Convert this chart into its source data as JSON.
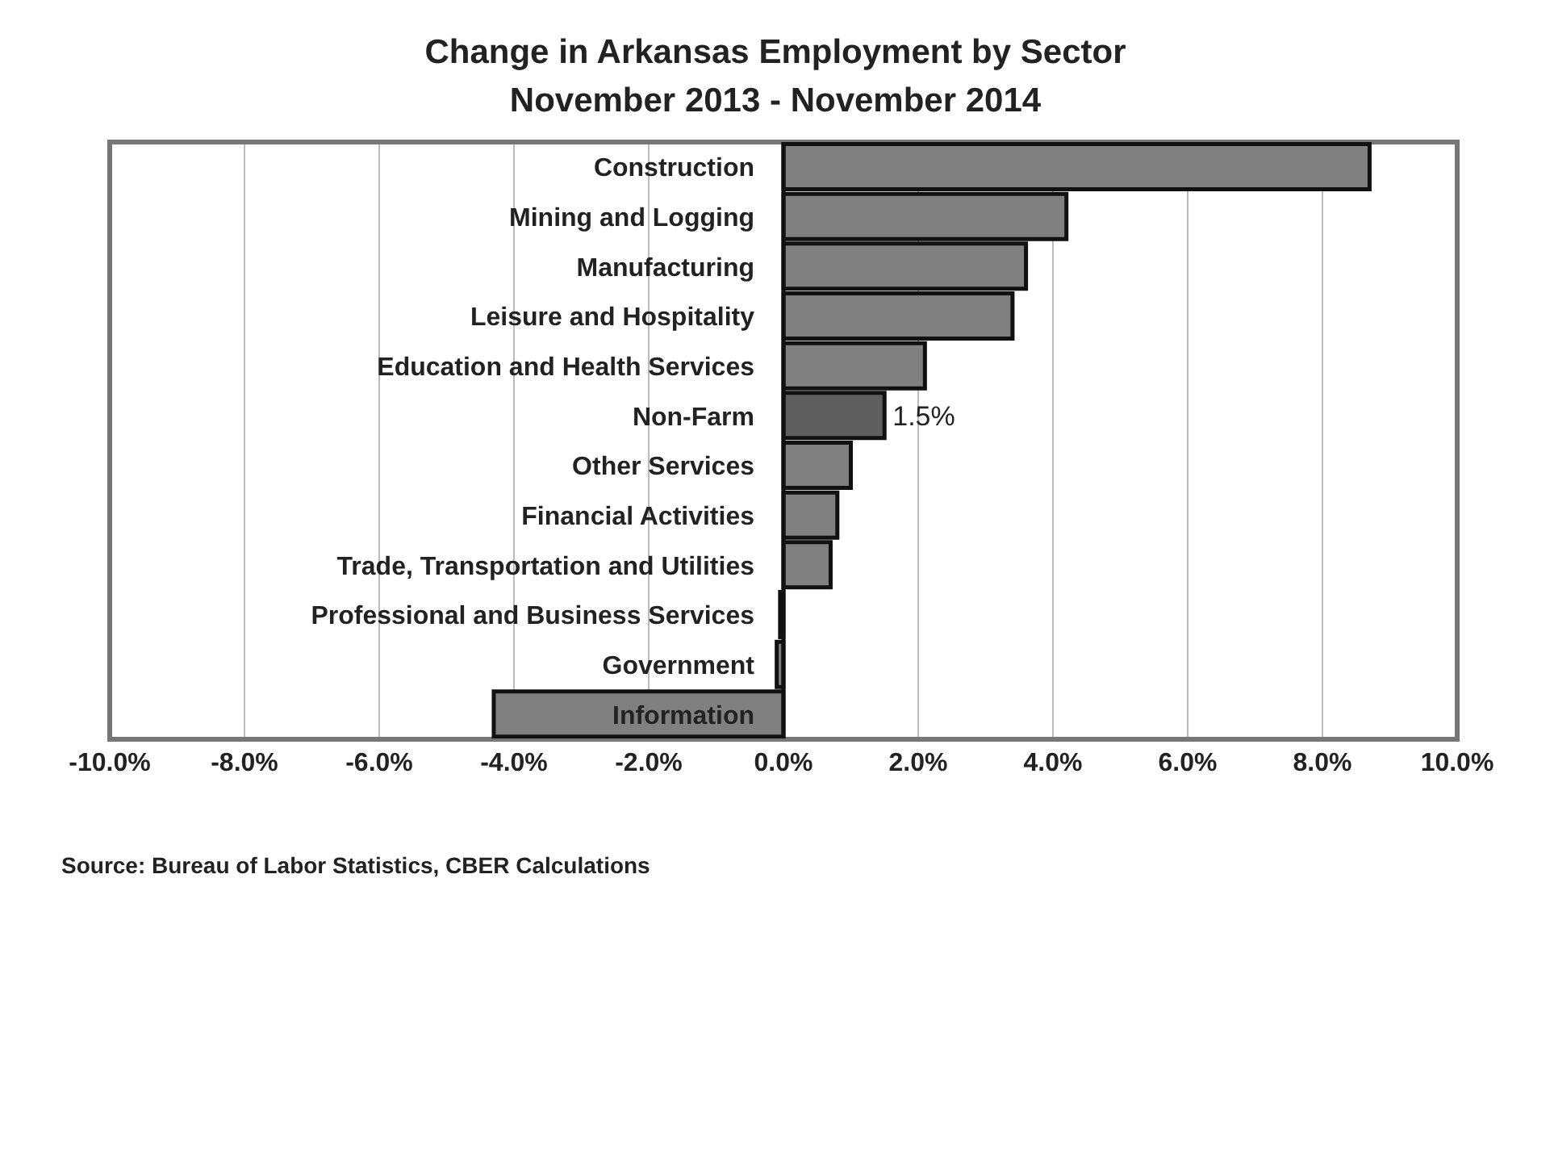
{
  "chart_data": {
    "type": "bar",
    "orientation": "horizontal",
    "title": "Change in Arkansas Employment by Sector",
    "subtitle": "November 2013 - November 2014",
    "categories": [
      "Construction",
      "Mining and Logging",
      "Manufacturing",
      "Leisure and Hospitality",
      "Education and Health Services",
      "Non-Farm",
      "Other Services",
      "Financial Activities",
      "Trade, Transportation and Utilities",
      "Professional and Business Services",
      "Government",
      "Information"
    ],
    "values": [
      8.7,
      4.2,
      3.6,
      3.4,
      2.1,
      1.5,
      1.0,
      0.8,
      0.7,
      -0.05,
      -0.1,
      -4.3
    ],
    "colors": [
      "#808080",
      "#808080",
      "#808080",
      "#808080",
      "#808080",
      "#5f5f5f",
      "#808080",
      "#808080",
      "#808080",
      "#808080",
      "#808080",
      "#808080"
    ],
    "value_labels": [
      null,
      null,
      null,
      null,
      null,
      "1.5%",
      null,
      null,
      null,
      null,
      null,
      null
    ],
    "xlim": [
      -10,
      10
    ],
    "xticks": [
      {
        "value": -10,
        "label": "-10.0%"
      },
      {
        "value": -8,
        "label": "-8.0%"
      },
      {
        "value": -6,
        "label": "-6.0%"
      },
      {
        "value": -4,
        "label": "-4.0%"
      },
      {
        "value": -2,
        "label": "-2.0%"
      },
      {
        "value": 0,
        "label": "0.0%"
      },
      {
        "value": 2,
        "label": "2.0%"
      },
      {
        "value": 4,
        "label": "4.0%"
      },
      {
        "value": 6,
        "label": "6.0%"
      },
      {
        "value": 8,
        "label": "8.0%"
      },
      {
        "value": 10,
        "label": "10.0%"
      }
    ],
    "grid": "x",
    "annotations": [
      "Source: Bureau of Labor Statistics, CBER Calculations"
    ]
  }
}
